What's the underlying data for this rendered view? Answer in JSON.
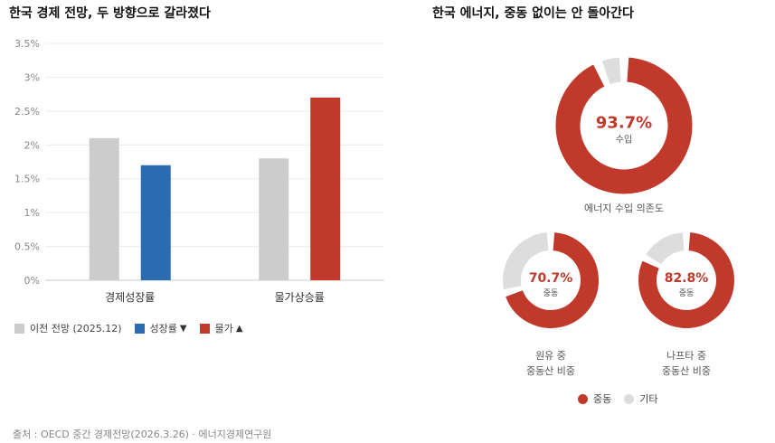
{
  "left": {
    "title": "한국 경제 전망, 두 방향으로 갈라졌다",
    "legend": [
      {
        "label": "이전 전망 (2025.12)",
        "color": "#cccccc",
        "marker": ""
      },
      {
        "label": "성장률",
        "color": "#2b6cb0",
        "marker": "▼"
      },
      {
        "label": "물가",
        "color": "#c0392b",
        "marker": "▲"
      }
    ]
  },
  "right": {
    "title": "한국 에너지, 중동 없이는 안 돌아간다",
    "legend": [
      {
        "label": "중동",
        "color": "#c0392b"
      },
      {
        "label": "기타",
        "color": "#dddddd"
      }
    ]
  },
  "source": "출처 : OECD 중간 경제전망(2026.3.26) · 에너지경제연구원",
  "chart_data": [
    {
      "type": "bar",
      "title": "한국 경제 전망, 두 방향으로 갈라졌다",
      "categories": [
        "경제성장률",
        "물가상승률"
      ],
      "series": [
        {
          "name": "이전 전망 (2025.12)",
          "values": [
            2.1,
            1.8
          ],
          "color": "#cccccc"
        },
        {
          "name": "성장률",
          "values": [
            1.7,
            null
          ],
          "color": "#2b6cb0"
        },
        {
          "name": "물가",
          "values": [
            null,
            2.7
          ],
          "color": "#c0392b"
        }
      ],
      "yticks": [
        "0%",
        "0.5%",
        "1%",
        "1.5%",
        "2%",
        "2.5%",
        "3%",
        "3.5%"
      ],
      "ylim": [
        0,
        3.5
      ],
      "grid": true,
      "legend": "bottom-left"
    },
    {
      "type": "pie",
      "title": "에너지 수입 의존도",
      "center_value": "93.7%",
      "center_label": "수입",
      "slices": [
        {
          "name": "수입",
          "value": 93.7,
          "color": "#c0392b"
        },
        {
          "name": "기타",
          "value": 6.3,
          "color": "#dddddd"
        }
      ]
    },
    {
      "type": "pie",
      "title": [
        "원유 중",
        "중동산 비중"
      ],
      "center_value": "70.7%",
      "center_label": "중동",
      "slices": [
        {
          "name": "중동",
          "value": 70.7,
          "color": "#c0392b"
        },
        {
          "name": "기타",
          "value": 29.3,
          "color": "#dddddd"
        }
      ]
    },
    {
      "type": "pie",
      "title": [
        "나프타 중",
        "중동산 비중"
      ],
      "center_value": "82.8%",
      "center_label": "중동",
      "slices": [
        {
          "name": "중동",
          "value": 82.8,
          "color": "#c0392b"
        },
        {
          "name": "기타",
          "value": 17.2,
          "color": "#dddddd"
        }
      ]
    }
  ]
}
